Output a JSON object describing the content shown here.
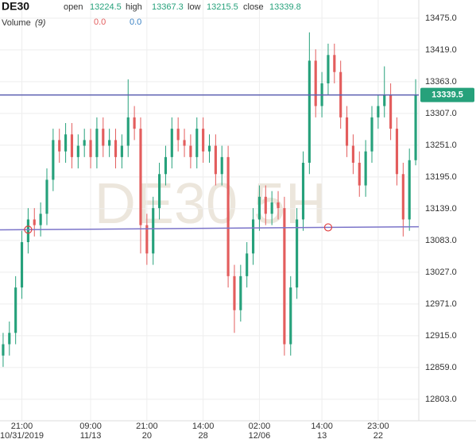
{
  "header": {
    "symbol": "DE30",
    "fields": [
      {
        "label": "open",
        "value": 13224.5
      },
      {
        "label": "high",
        "value": 13367.3
      },
      {
        "label": "low",
        "value": 13215.5
      },
      {
        "label": "close",
        "value": 13339.8
      }
    ],
    "volume": {
      "label": "Volume",
      "param": "(9)",
      "values": [
        "0.0",
        "0.0"
      ]
    }
  },
  "chart_data": {
    "type": "candlestick",
    "watermark": "DE30 5H",
    "up_color": "#26a17b",
    "down_color": "#e35d5d",
    "open": [
      12880,
      12900,
      12920,
      13000,
      13080,
      13120,
      13110,
      13130,
      13190,
      13260,
      13240,
      13270,
      13230,
      13250,
      13260,
      13230,
      13280,
      13250,
      13260,
      13230,
      13250,
      13300,
      13280,
      13110,
      13060,
      13140,
      13200,
      13230,
      13280,
      13260,
      13250,
      13230,
      13280,
      13240,
      13250,
      13200,
      13230,
      13020,
      12960,
      13020,
      13060,
      13120,
      13160,
      13130,
      13150,
      13140,
      12900,
      13000,
      13120,
      13220,
      13400,
      13320,
      13360,
      13410,
      13380,
      13300,
      13250,
      13220,
      13180,
      13240,
      13300,
      13320,
      13340,
      13280,
      13200,
      13120,
      13224.5
    ],
    "high": [
      12920,
      12940,
      13020,
      13100,
      13140,
      13140,
      13150,
      13210,
      13280,
      13280,
      13290,
      13290,
      13270,
      13280,
      13280,
      13300,
      13300,
      13280,
      13280,
      13270,
      13367,
      13320,
      13300,
      13130,
      13160,
      13220,
      13250,
      13300,
      13300,
      13280,
      13270,
      13300,
      13300,
      13270,
      13270,
      13250,
      13250,
      13040,
      13040,
      13080,
      13140,
      13180,
      13180,
      13170,
      13170,
      13160,
      13020,
      13140,
      13240,
      13450,
      13420,
      13380,
      13430,
      13430,
      13400,
      13320,
      13270,
      13240,
      13260,
      13320,
      13340,
      13390,
      13360,
      13300,
      13220,
      13245,
      13367.3
    ],
    "low": [
      12860,
      12880,
      12900,
      12980,
      13060,
      13090,
      13090,
      13110,
      13170,
      13220,
      13220,
      13210,
      13210,
      13230,
      13210,
      13210,
      13230,
      13230,
      13210,
      13210,
      13230,
      13260,
      13060,
      13040,
      13040,
      13120,
      13180,
      13210,
      13240,
      13230,
      13210,
      13210,
      13220,
      13220,
      13180,
      13180,
      13000,
      12920,
      12940,
      13000,
      13040,
      13100,
      13110,
      13110,
      13120,
      12880,
      12880,
      12980,
      13100,
      13200,
      13300,
      13300,
      13340,
      13360,
      13280,
      13230,
      13200,
      13160,
      13160,
      13220,
      13280,
      13300,
      13260,
      13180,
      13090,
      13100,
      13215.5
    ],
    "close": [
      12900,
      12920,
      13000,
      13080,
      13120,
      13110,
      13130,
      13190,
      13260,
      13240,
      13270,
      13230,
      13250,
      13260,
      13230,
      13280,
      13250,
      13260,
      13230,
      13250,
      13300,
      13280,
      13110,
      13060,
      13140,
      13200,
      13230,
      13280,
      13260,
      13250,
      13230,
      13280,
      13240,
      13250,
      13200,
      13230,
      13020,
      12960,
      13020,
      13060,
      13120,
      13160,
      13130,
      13150,
      13140,
      12900,
      13000,
      13120,
      13220,
      13400,
      13320,
      13360,
      13410,
      13380,
      13300,
      13250,
      13220,
      13180,
      13240,
      13300,
      13320,
      13340,
      13280,
      13200,
      13120,
      13224.5,
      13339.8
    ],
    "ylim": [
      12765,
      13507
    ],
    "yticks": [
      {
        "value": 12803,
        "label": "12803.0"
      },
      {
        "value": 12859,
        "label": "12859.0"
      },
      {
        "value": 12915,
        "label": "12915.0"
      },
      {
        "value": 12971,
        "label": "12971.0"
      },
      {
        "value": 13027,
        "label": "13027.0"
      },
      {
        "value": 13083,
        "label": "13083.0"
      },
      {
        "value": 13139,
        "label": "13139.0"
      },
      {
        "value": 13195,
        "label": "13195.0"
      },
      {
        "value": 13251,
        "label": "13251.0"
      },
      {
        "value": 13307,
        "label": "13307.0"
      },
      {
        "value": 13363,
        "label": "13363.0"
      },
      {
        "value": 13419,
        "label": "13419.0"
      },
      {
        "value": 13475,
        "label": "13475.0"
      }
    ],
    "xticks": [
      {
        "index": 3,
        "label": "21:00",
        "sublabel": "10/31/2019"
      },
      {
        "index": 14,
        "label": "09:00",
        "sublabel": "11/13"
      },
      {
        "index": 23,
        "label": "21:00",
        "sublabel": "20"
      },
      {
        "index": 32,
        "label": "14:00",
        "sublabel": "28"
      },
      {
        "index": 41,
        "label": "02:00",
        "sublabel": "12/06"
      },
      {
        "index": 51,
        "label": "14:00",
        "sublabel": "13"
      },
      {
        "index": 60,
        "label": "23:00",
        "sublabel": "22"
      }
    ],
    "grid": true,
    "price_line": {
      "value": 13339.5,
      "color": "#5b5fb0",
      "label_color": "#26a17b"
    },
    "trendline": {
      "color": "#7b74c9",
      "points": [
        {
          "index": 4,
          "price": 13102
        },
        {
          "index": 52,
          "price": 13106
        }
      ]
    }
  }
}
